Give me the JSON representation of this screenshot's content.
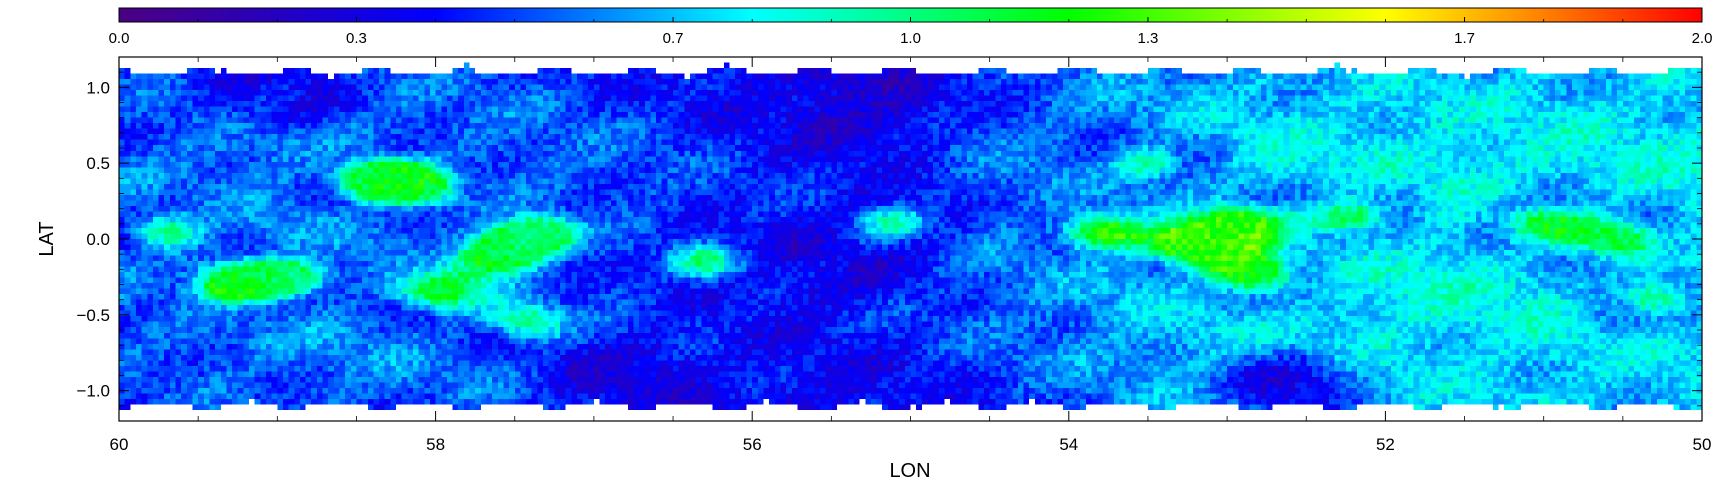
{
  "chart_data": {
    "type": "heatmap",
    "xlabel": "LON",
    "ylabel": "LAT",
    "xlim": [
      60,
      50
    ],
    "ylim": [
      -1.2,
      1.2
    ],
    "x_ticks": [
      {
        "value": 60,
        "label": "60"
      },
      {
        "value": 58,
        "label": "58"
      },
      {
        "value": 56,
        "label": "56"
      },
      {
        "value": 54,
        "label": "54"
      },
      {
        "value": 52,
        "label": "52"
      },
      {
        "value": 50,
        "label": "50"
      }
    ],
    "y_ticks": [
      {
        "value": 1.0,
        "label": "1.0"
      },
      {
        "value": 0.5,
        "label": "0.5"
      },
      {
        "value": 0.0,
        "label": "0.0"
      },
      {
        "value": -0.5,
        "label": "−0.5"
      },
      {
        "value": -1.0,
        "label": "−1.0"
      }
    ],
    "colorbar": {
      "range": [
        0.0,
        2.0
      ],
      "ticks": [
        {
          "value": 0.0,
          "label": "0.0"
        },
        {
          "value": 0.3,
          "label": "0.3"
        },
        {
          "value": 0.7,
          "label": "0.7"
        },
        {
          "value": 1.0,
          "label": "1.0"
        },
        {
          "value": 1.3,
          "label": "1.3"
        },
        {
          "value": 1.7,
          "label": "1.7"
        },
        {
          "value": 2.0,
          "label": "2.0"
        }
      ],
      "placement": "top",
      "colormap": [
        "#4b0082",
        "#0000ff",
        "#00ffff",
        "#00ff00",
        "#ffff00",
        "#ff0000"
      ]
    },
    "data_edge_latitude": 1.15,
    "hotspots": [
      {
        "lon": 59.7,
        "lat": 0.05,
        "value": 1.02
      },
      {
        "lon": 59.3,
        "lat": -0.3,
        "value": 1.18
      },
      {
        "lon": 58.9,
        "lat": -0.25,
        "value": 1.05
      },
      {
        "lon": 58.4,
        "lat": 0.4,
        "value": 1.15
      },
      {
        "lon": 58.1,
        "lat": 0.35,
        "value": 1.08
      },
      {
        "lon": 58.0,
        "lat": -0.35,
        "value": 1.15
      },
      {
        "lon": 57.6,
        "lat": -0.1,
        "value": 1.25
      },
      {
        "lon": 57.3,
        "lat": 0.05,
        "value": 1.0
      },
      {
        "lon": 57.4,
        "lat": -0.55,
        "value": 1.0
      },
      {
        "lon": 56.3,
        "lat": -0.15,
        "value": 0.95
      },
      {
        "lon": 55.1,
        "lat": 0.1,
        "value": 0.85
      },
      {
        "lon": 53.8,
        "lat": 0.05,
        "value": 1.3
      },
      {
        "lon": 53.5,
        "lat": 0.5,
        "value": 1.0
      },
      {
        "lon": 53.2,
        "lat": -0.05,
        "value": 1.35
      },
      {
        "lon": 52.9,
        "lat": 0.1,
        "value": 1.25
      },
      {
        "lon": 52.8,
        "lat": -0.25,
        "value": 1.2
      },
      {
        "lon": 52.2,
        "lat": 0.15,
        "value": 1.12
      },
      {
        "lon": 51.0,
        "lat": 0.1,
        "value": 1.08
      },
      {
        "lon": 50.5,
        "lat": 0.0,
        "value": 1.08
      },
      {
        "lon": 50.3,
        "lat": -0.4,
        "value": 1.05
      }
    ],
    "low_regions": [
      {
        "lon": 55.3,
        "lat": 0.85,
        "value": 0.3
      },
      {
        "lon": 55.5,
        "lat": -0.2,
        "value": 0.35
      },
      {
        "lon": 56.8,
        "lat": -0.85,
        "value": 0.35
      },
      {
        "lon": 52.6,
        "lat": -0.95,
        "value": 0.35
      },
      {
        "lon": 59.0,
        "lat": 0.95,
        "value": 0.45
      }
    ]
  }
}
